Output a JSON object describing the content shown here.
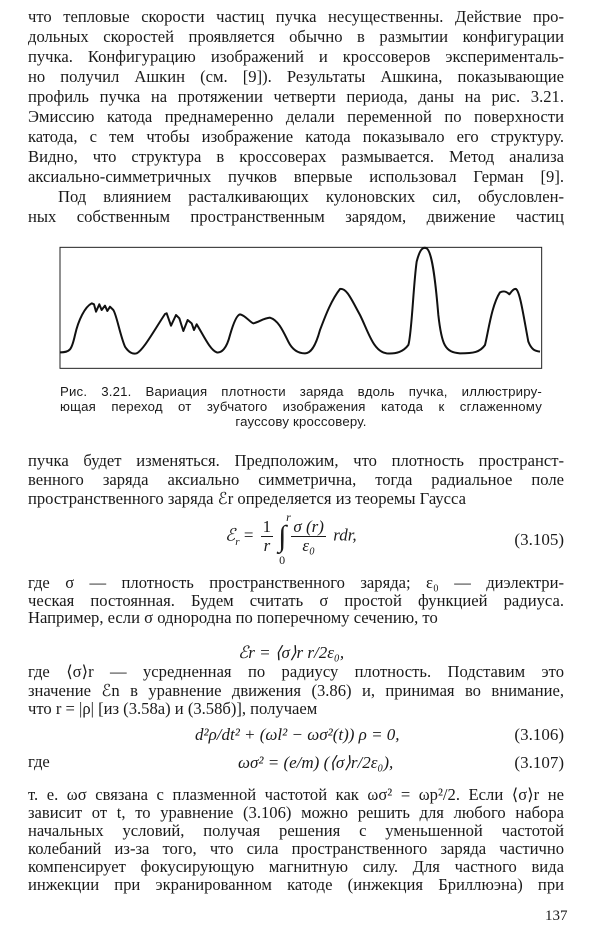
{
  "paragraph1": [
    "что тепловые скорости частиц пучка несущественны. Действие про-",
    "дольных скоростей проявляется обычно в размытии конфигурации",
    "пучка. Конфигурацию изображений и кроссоверов эксперименталь-",
    "но получил Ашкин (см. [9]). Результаты Ашкина, показывающие",
    "профиль пучка на протяжении четверти периода, даны на рис. 3.21.",
    "Эмиссию катода преднамеренно делали переменной по поверхности",
    "катода, с тем чтобы изображение катода показывало его структуру.",
    "Видно, что структура в кроссоверах размывается. Метод анализа",
    "аксиально-симметричных пучков впервые использовал Герман [9]."
  ],
  "paragraph2": [
    "Под влиянием расталкивающих кулоновских сил, обусловлен-",
    "ных собственным пространственным зарядом, движение частиц"
  ],
  "figure": {
    "caption": [
      "Рис. 3.21. Вариация плотности заряда вдоль пучка, иллюстриру-",
      "ющая переход от зубчатого изображения катода к сглаженному",
      "гауссову кроссоверу."
    ]
  },
  "paragraph3": [
    "пучка будет изменяться. Предположим, что плотность пространст-",
    "венного заряда аксиально симметрична, тогда радиальное поле",
    "пространственного заряда ℰr определяется из теоремы Гаусса"
  ],
  "eq105": {
    "lhs": "ℰ",
    "lhs_sub": "r",
    "eq": "=",
    "one": "1",
    "r": "r",
    "int": "∫",
    "upper": "r",
    "lower": "0",
    "num": "σ (r)",
    "den": "ε₀",
    "tail": "rdr,",
    "label": "(3.105)"
  },
  "paragraph4": [
    "где σ — плотность пространственного заряда;   ε₀ — диэлектри-",
    "ческая постоянная. Будем считать σ простой функцией радиуса.",
    "Например, если σ однородна по поперечному сечению, то"
  ],
  "eq_uniform": "ℰr = ⟨σ⟩r r/2ε₀,",
  "paragraph5": [
    "где ⟨σ⟩r — усредненная по радиусу плотность. Подставим это",
    "значение ℰn в уравнение движения (3.86) и, принимая во внимание,",
    "что r = |ρ|  [из (3.58а) и (3.58б)], получаем"
  ],
  "eq106": {
    "text": "d²ρ/dt² + (ωl² − ωσ²(t)) ρ = 0,",
    "label": "(3.106)"
  },
  "eq107": {
    "prefix": "где",
    "text": "ωσ² = (e/m) (⟨σ⟩r/2ε₀),",
    "label": "(3.107)"
  },
  "paragraph6": [
    "т. е. ωσ связана с плазменной частотой как ωσ² = ωp²/2. Если ⟨σ⟩r не",
    "зависит от t, то уравнение (3.106) можно решить для любого набора",
    "начальных условий, получая решения с уменьшенной частотой",
    "колебаний из-за того, что сила пространственного заряда частично",
    "компенсирует фокусирующую магнитную силу. Для частного вида",
    "инжекции при экранированном катоде (инжекция Бриллюэна) при"
  ],
  "page_number": "137"
}
